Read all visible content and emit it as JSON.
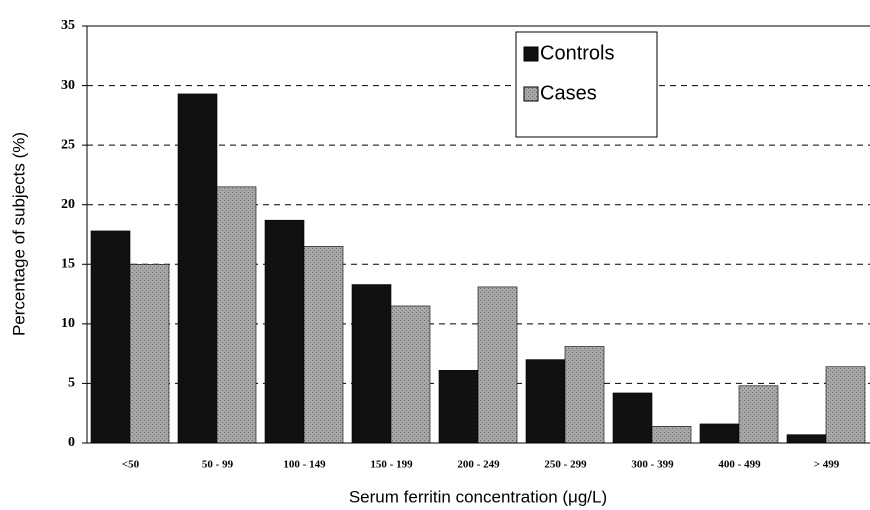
{
  "chart_data": {
    "type": "bar",
    "x_label": "Serum ferritin concentration (μg/L)",
    "y_label": "Percentage of subjects (%)",
    "categories": [
      "<50",
      "50 - 99",
      "100 - 149",
      "150 - 199",
      "200 - 249",
      "250 - 299",
      "300 - 399",
      "400 - 499",
      "> 499"
    ],
    "series": [
      {
        "name": "Controls",
        "color": "#111111",
        "values": [
          17.8,
          29.3,
          18.7,
          13.3,
          6.1,
          7.0,
          4.2,
          1.6,
          0.7
        ]
      },
      {
        "name": "Cases",
        "color": "#a0a0a0",
        "values": [
          15.0,
          21.5,
          16.5,
          11.5,
          13.1,
          8.1,
          1.4,
          4.8,
          6.4
        ]
      }
    ],
    "ylim": [
      0,
      35
    ],
    "yticks": [
      0,
      5,
      10,
      15,
      20,
      25,
      30,
      35
    ],
    "grid": true,
    "legend": "upper right"
  }
}
